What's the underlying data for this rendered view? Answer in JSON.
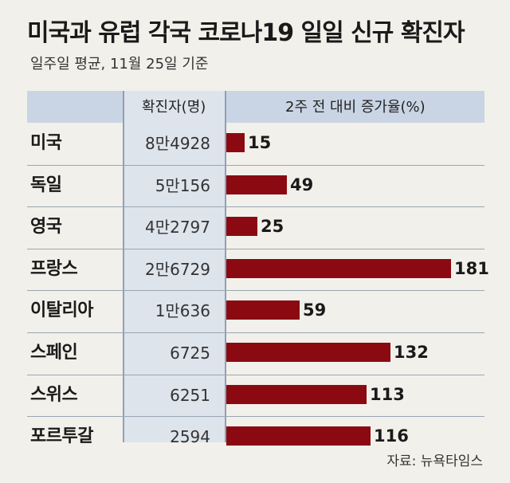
{
  "title": "미국과 유럽 각국 코로나19 일일 신규 확진자",
  "subtitle": "일주일 평균, 11월 25일 기준",
  "source": "자료: 뉴욕타임스",
  "chart_data": {
    "type": "bar",
    "columns": [
      "확진자(명)",
      "2주 전 대비 증가율(%)"
    ],
    "categories": [
      "미국",
      "독일",
      "영국",
      "프랑스",
      "이탈리아",
      "스페인",
      "스위스",
      "포르투갈"
    ],
    "cases": [
      "8만4928",
      "5만156",
      "4만2797",
      "2만6729",
      "1만636",
      "6725",
      "6251",
      "2594"
    ],
    "values": [
      15,
      49,
      25,
      181,
      59,
      132,
      113,
      116
    ],
    "colors": {
      "bar": "#8b0a12"
    }
  }
}
